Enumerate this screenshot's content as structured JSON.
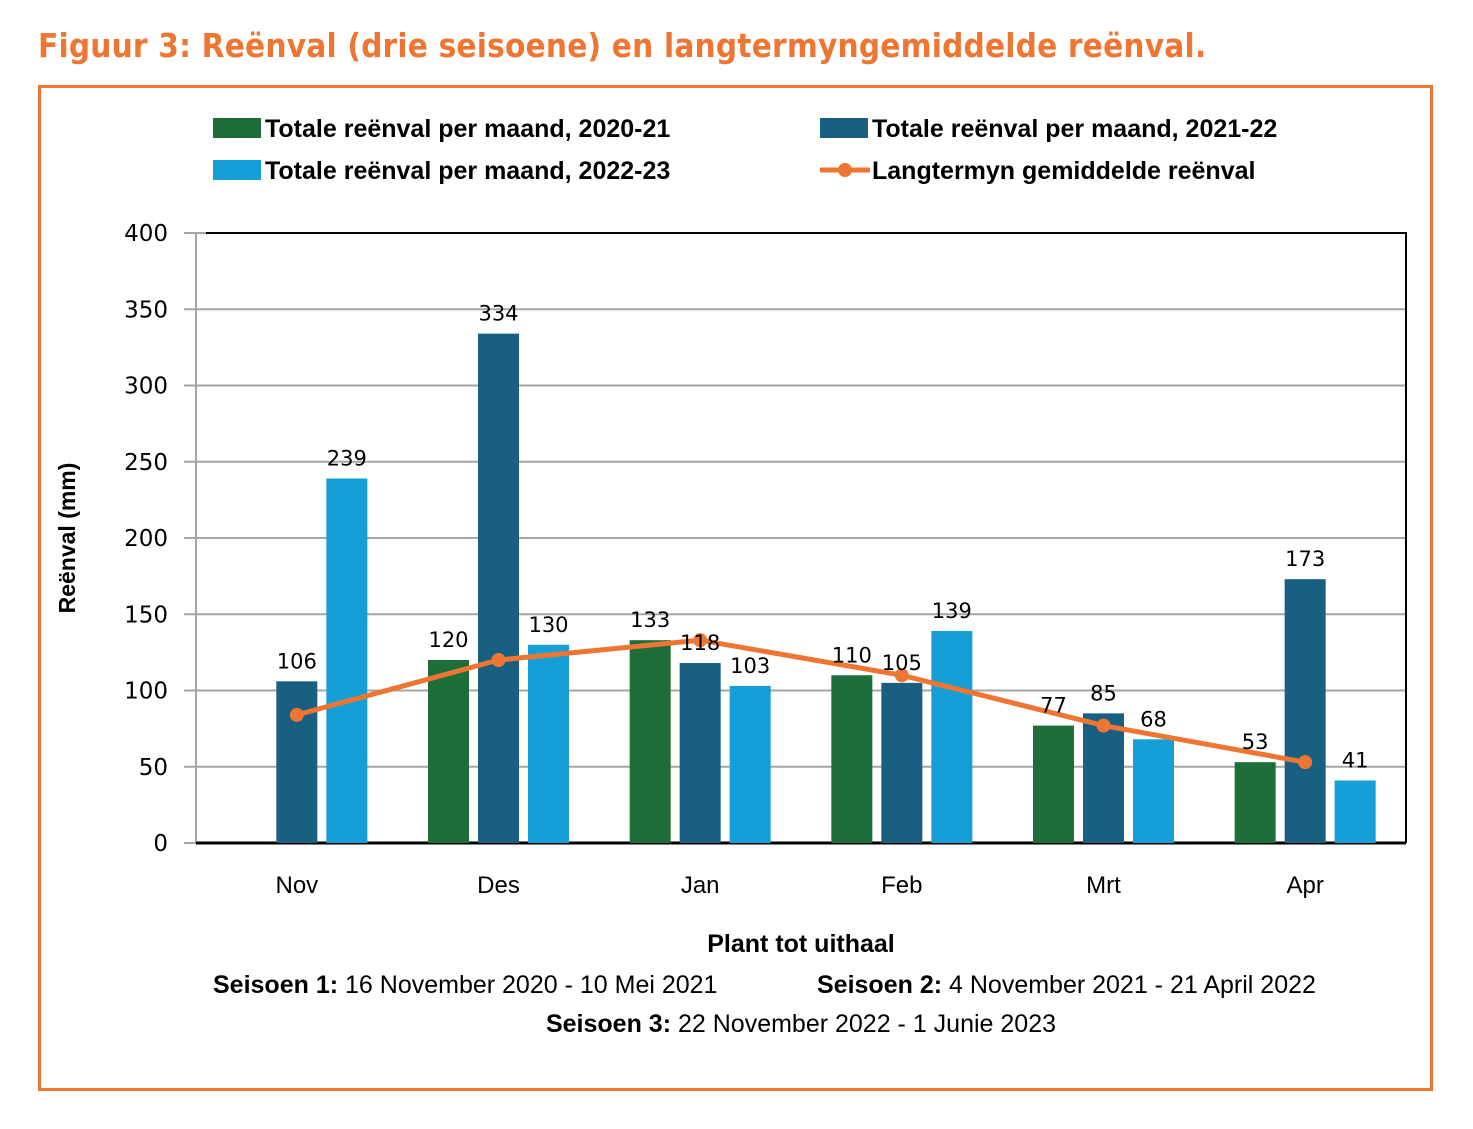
{
  "figure": {
    "title": "Figuur 3: Reënval (drie seisoene) en langtermyngemiddelde reënval."
  },
  "colors": {
    "frame": "#EE7632",
    "series_2020_21": "#1E6E3A",
    "series_2021_22": "#185F82",
    "series_2022_23": "#159FD6",
    "long_term": "#EE7632",
    "grid": "#A6A6A6"
  },
  "chart_data": {
    "type": "bar",
    "title": "",
    "xlabel": "Plant tot uithaal",
    "ylabel": "Reënval (mm)",
    "ylim": [
      0,
      400
    ],
    "yticks": [
      0,
      50,
      100,
      150,
      200,
      250,
      300,
      350,
      400
    ],
    "grid": true,
    "legend_position": "top",
    "categories": [
      "Nov",
      "Des",
      "Jan",
      "Feb",
      "Mrt",
      "Apr"
    ],
    "series": [
      {
        "name": "Totale  reënval  per  maand,  2020-21",
        "type": "bar",
        "color_key": "series_2020_21",
        "values": [
          null,
          120,
          133,
          110,
          77,
          53
        ]
      },
      {
        "name": "Totale reënval per maand, 2021-22",
        "type": "bar",
        "color_key": "series_2021_22",
        "values": [
          106,
          334,
          118,
          105,
          85,
          173
        ]
      },
      {
        "name": "Totale reënval per maand, 2022-23",
        "type": "bar",
        "color_key": "series_2022_23",
        "values": [
          239,
          130,
          103,
          139,
          68,
          41
        ]
      },
      {
        "name": "Langtermyn gemiddelde reënval",
        "type": "line",
        "color_key": "long_term",
        "values": [
          84,
          120,
          133,
          110,
          77,
          53
        ]
      }
    ]
  },
  "notes": {
    "season1_label": "Seisoen 1:",
    "season1_text": " 16 November 2020 - 10 Mei 2021",
    "season2_label": "Seisoen 2:",
    "season2_text": " 4 November 2021 - 21 April 2022",
    "season3_label": "Seisoen 3:",
    "season3_text": " 22 November 2022 - 1 Junie 2023"
  }
}
